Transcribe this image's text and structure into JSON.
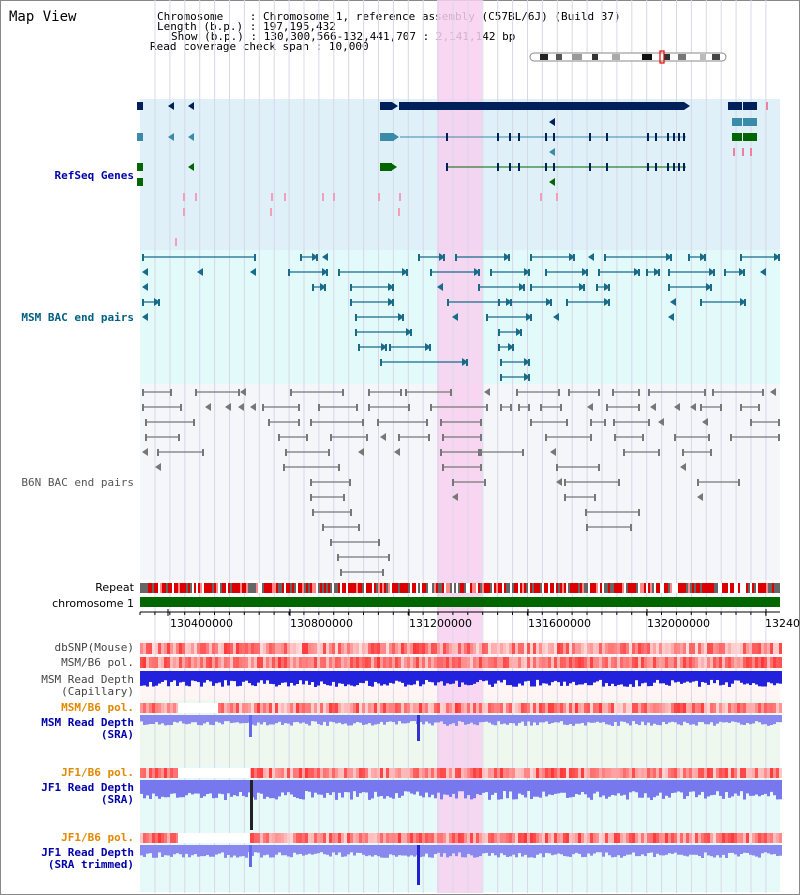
{
  "window_title": "Map View",
  "info": {
    "chromosome_label": "Chromosome",
    "chromosome_value": "Chromosome 1, reference assembly (C57BL/6J) (Build 37)",
    "length_label": "Length (b.p.)",
    "length_value": "197,195,432",
    "show_label": "Show (b.p.)",
    "show_value": "130,300,566-132,441,707 : 2,141,142 bp",
    "span_label": "Read coverage check span",
    "span_value": "10,000"
  },
  "tracks": {
    "refseq": "RefSeq Genes",
    "msm_bac": "MSM BAC end pairs",
    "b6n_bac": "B6N BAC end pairs",
    "repeat": "Repeat",
    "chromosome": "chromosome 1",
    "dbsnp": "dbSNP(Mouse)",
    "msm_b6_pol": "MSM/B6 pol.",
    "msm_depth_cap_1": "MSM Read Depth",
    "msm_depth_cap_2": "(Capillary)",
    "msm_b6_pol2": "MSM/B6 pol.",
    "msm_depth_sra_1": "MSM Read Depth",
    "msm_depth_sra_2": "(SRA)",
    "jf1_b6_pol": "JF1/B6 pol.",
    "jf1_depth_sra_1": "JF1 Read Depth",
    "jf1_depth_sra_2": "(SRA)",
    "jf1_b6_pol2": "JF1/B6 pol.",
    "jf1_depth_trim_1": "JF1 Read Depth",
    "jf1_depth_trim_2": "(SRA trimmed)"
  },
  "ruler": {
    "ticks": [
      "130400000",
      "130800000",
      "131200000",
      "131600000",
      "132000000",
      "13240"
    ]
  },
  "colors": {
    "refseq_bg": "#dff0f8",
    "msm_bg": "#e2fafa",
    "b6n_bg": "#f4f6fa",
    "highlight": "#f8d0f0",
    "refseq_label": "#0000aa",
    "msm_label": "#006080",
    "b6n_label": "#555555",
    "orange_label": "#e08800",
    "chromosome_bar": "#006600",
    "depth_blue": "#3333cc",
    "gene_dark": "#00205a",
    "gene_teal": "#3a8aaa",
    "gene_green": "#006600"
  }
}
